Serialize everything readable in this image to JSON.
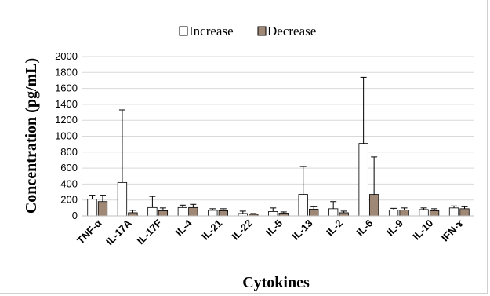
{
  "chart_data": {
    "type": "bar",
    "title": "",
    "xlabel": "Cytokines",
    "ylabel": "Concentration (pg/mL)",
    "ylim": [
      0,
      2000
    ],
    "yticks": [
      "0",
      "200",
      "400",
      "600",
      "800",
      "1000",
      "1200",
      "1400",
      "1600",
      "1800",
      "2000"
    ],
    "grid": true,
    "legend_position": "top",
    "categories": [
      "TNF-α",
      "IL-17A",
      "IL-17F",
      "IL-4",
      "IL-21",
      "IL-22",
      "IL-5",
      "IL-13",
      "IL-2",
      "IL-6",
      "IL-9",
      "IL-10",
      "IFN-ɤ"
    ],
    "series": [
      {
        "name": "Increase",
        "color": "#ffffff",
        "values": [
          210,
          420,
          105,
          105,
          70,
          30,
          55,
          270,
          90,
          910,
          75,
          80,
          100
        ],
        "errors": [
          50,
          910,
          140,
          30,
          20,
          30,
          45,
          350,
          90,
          830,
          20,
          20,
          25
        ]
      },
      {
        "name": "Decrease",
        "color": "#a08877",
        "values": [
          180,
          40,
          65,
          105,
          65,
          20,
          35,
          85,
          40,
          270,
          75,
          65,
          90
        ],
        "errors": [
          80,
          30,
          35,
          40,
          25,
          10,
          15,
          30,
          20,
          470,
          25,
          25,
          25
        ]
      }
    ]
  }
}
